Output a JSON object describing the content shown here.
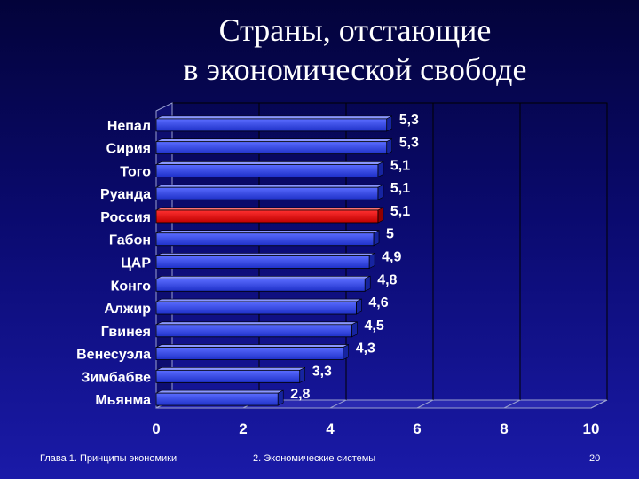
{
  "slide": {
    "title_line1": "Страны, отстающие",
    "title_line2": "в экономической свободе",
    "footer_left": "Глава 1. Принципы экономики",
    "footer_center": "2. Экономические системы",
    "page_number": "20"
  },
  "colors": {
    "bar": "#2f45e6",
    "highlight_bar": "#e01010",
    "text": "#ffffff",
    "gridline": "#000000"
  },
  "chart_data": {
    "type": "bar",
    "orientation": "horizontal",
    "style": "3d",
    "categories": [
      "Непал",
      "Сирия",
      "Того",
      "Руанда",
      "Россия",
      "Габон",
      "ЦАР",
      "Конго",
      "Алжир",
      "Гвинея",
      "Венесуэла",
      "Зимбабве",
      "Мьянма"
    ],
    "values": [
      5.3,
      5.3,
      5.1,
      5.1,
      5.1,
      5,
      4.9,
      4.8,
      4.6,
      4.5,
      4.3,
      3.3,
      2.8
    ],
    "value_labels": [
      "5,3",
      "5,3",
      "5,1",
      "5,1",
      "5,1",
      "5",
      "4,9",
      "4,8",
      "4,6",
      "4,5",
      "4,3",
      "3,3",
      "2,8"
    ],
    "highlight_category": "Россия",
    "xlim": [
      0,
      10
    ],
    "x_ticks": [
      0,
      2,
      4,
      6,
      8,
      10
    ],
    "x_tick_labels": [
      "0",
      "2",
      "4",
      "6",
      "8",
      "10"
    ],
    "grid": true,
    "legend": "none"
  }
}
